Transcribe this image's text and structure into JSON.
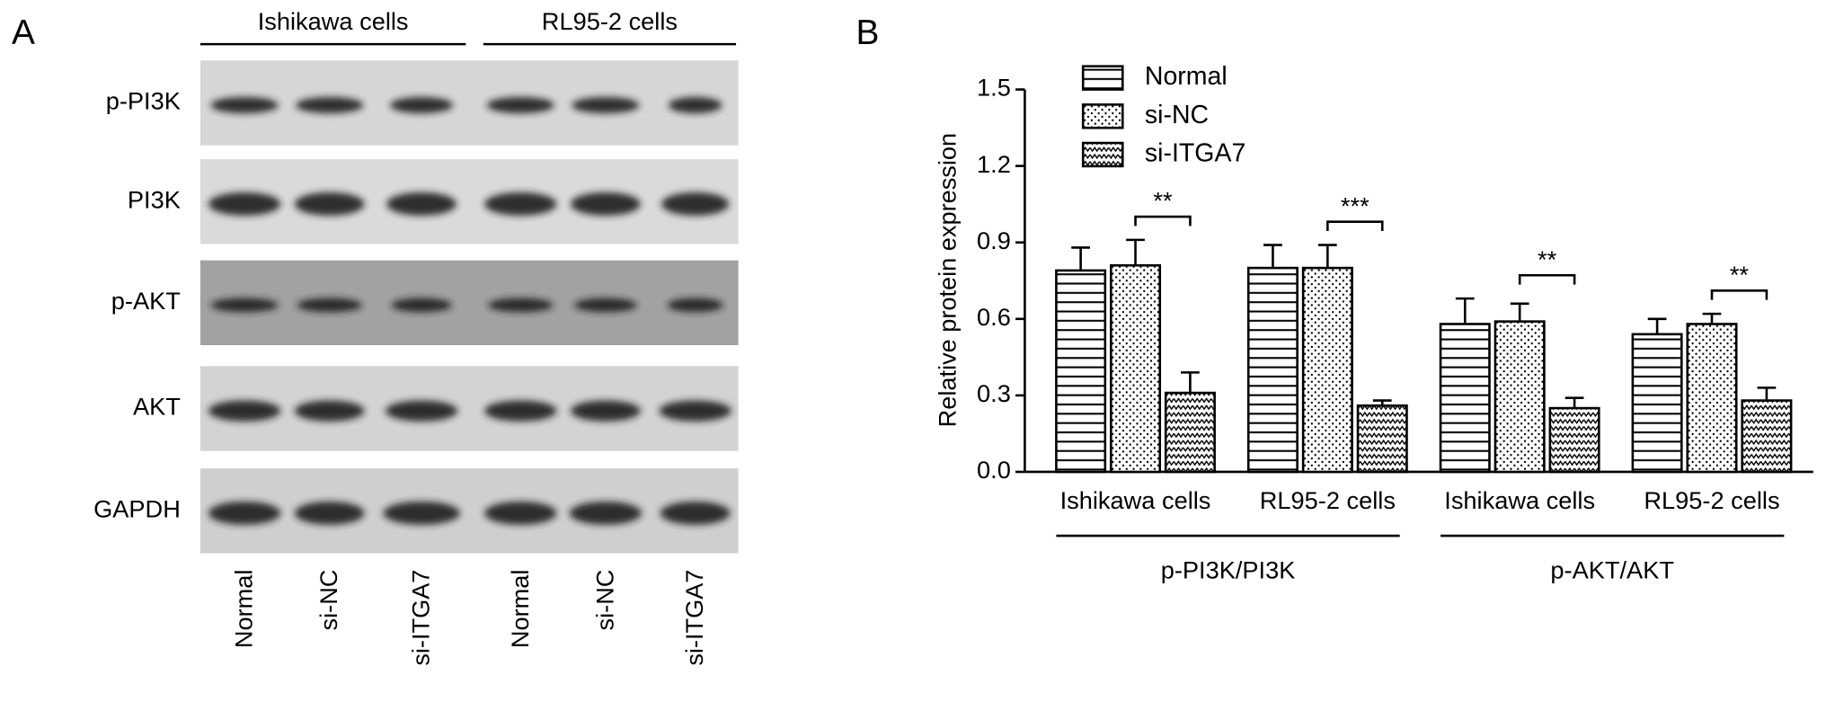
{
  "panel_a": {
    "label": "A",
    "groups": [
      "Ishikawa cells",
      "RL95-2 cells"
    ],
    "rows": [
      "p-PI3K",
      "PI3K",
      "p-AKT",
      "AKT",
      "GAPDH"
    ],
    "lanes": [
      "Normal",
      "si-NC",
      "si-ITGA7",
      "Normal",
      "si-NC",
      "si-ITGA7"
    ]
  },
  "chart_data": {
    "type": "bar",
    "panel_label": "B",
    "ylabel": "Relative protein expression",
    "category_groups": [
      {
        "label": "p-PI3K/PI3K",
        "categories": [
          "Ishikawa cells",
          "RL95-2 cells"
        ]
      },
      {
        "label": "p-AKT/AKT",
        "categories": [
          "Ishikawa cells",
          "RL95-2 cells"
        ]
      }
    ],
    "series": [
      {
        "name": "Normal",
        "color": "#000000",
        "hatch": "horizontal",
        "values": [
          0.79,
          0.8,
          0.58,
          0.54
        ],
        "errors": [
          0.09,
          0.09,
          0.1,
          0.06
        ]
      },
      {
        "name": "si-NC",
        "color": "#000000",
        "hatch": "dots",
        "values": [
          0.81,
          0.8,
          0.59,
          0.58
        ],
        "errors": [
          0.1,
          0.09,
          0.07,
          0.04
        ]
      },
      {
        "name": "si-ITGA7",
        "color": "#000000",
        "hatch": "waves",
        "values": [
          0.31,
          0.26,
          0.25,
          0.28
        ],
        "errors": [
          0.08,
          0.02,
          0.04,
          0.05
        ]
      }
    ],
    "significance": [
      "**",
      "***",
      "**",
      "**"
    ],
    "ylim": [
      0,
      1.5
    ],
    "yticks": [
      {
        "value": 0,
        "label": "0.0"
      },
      0.3,
      0.6,
      0.9,
      1.2,
      1.5
    ],
    "grid": false,
    "legend": "top-left"
  }
}
